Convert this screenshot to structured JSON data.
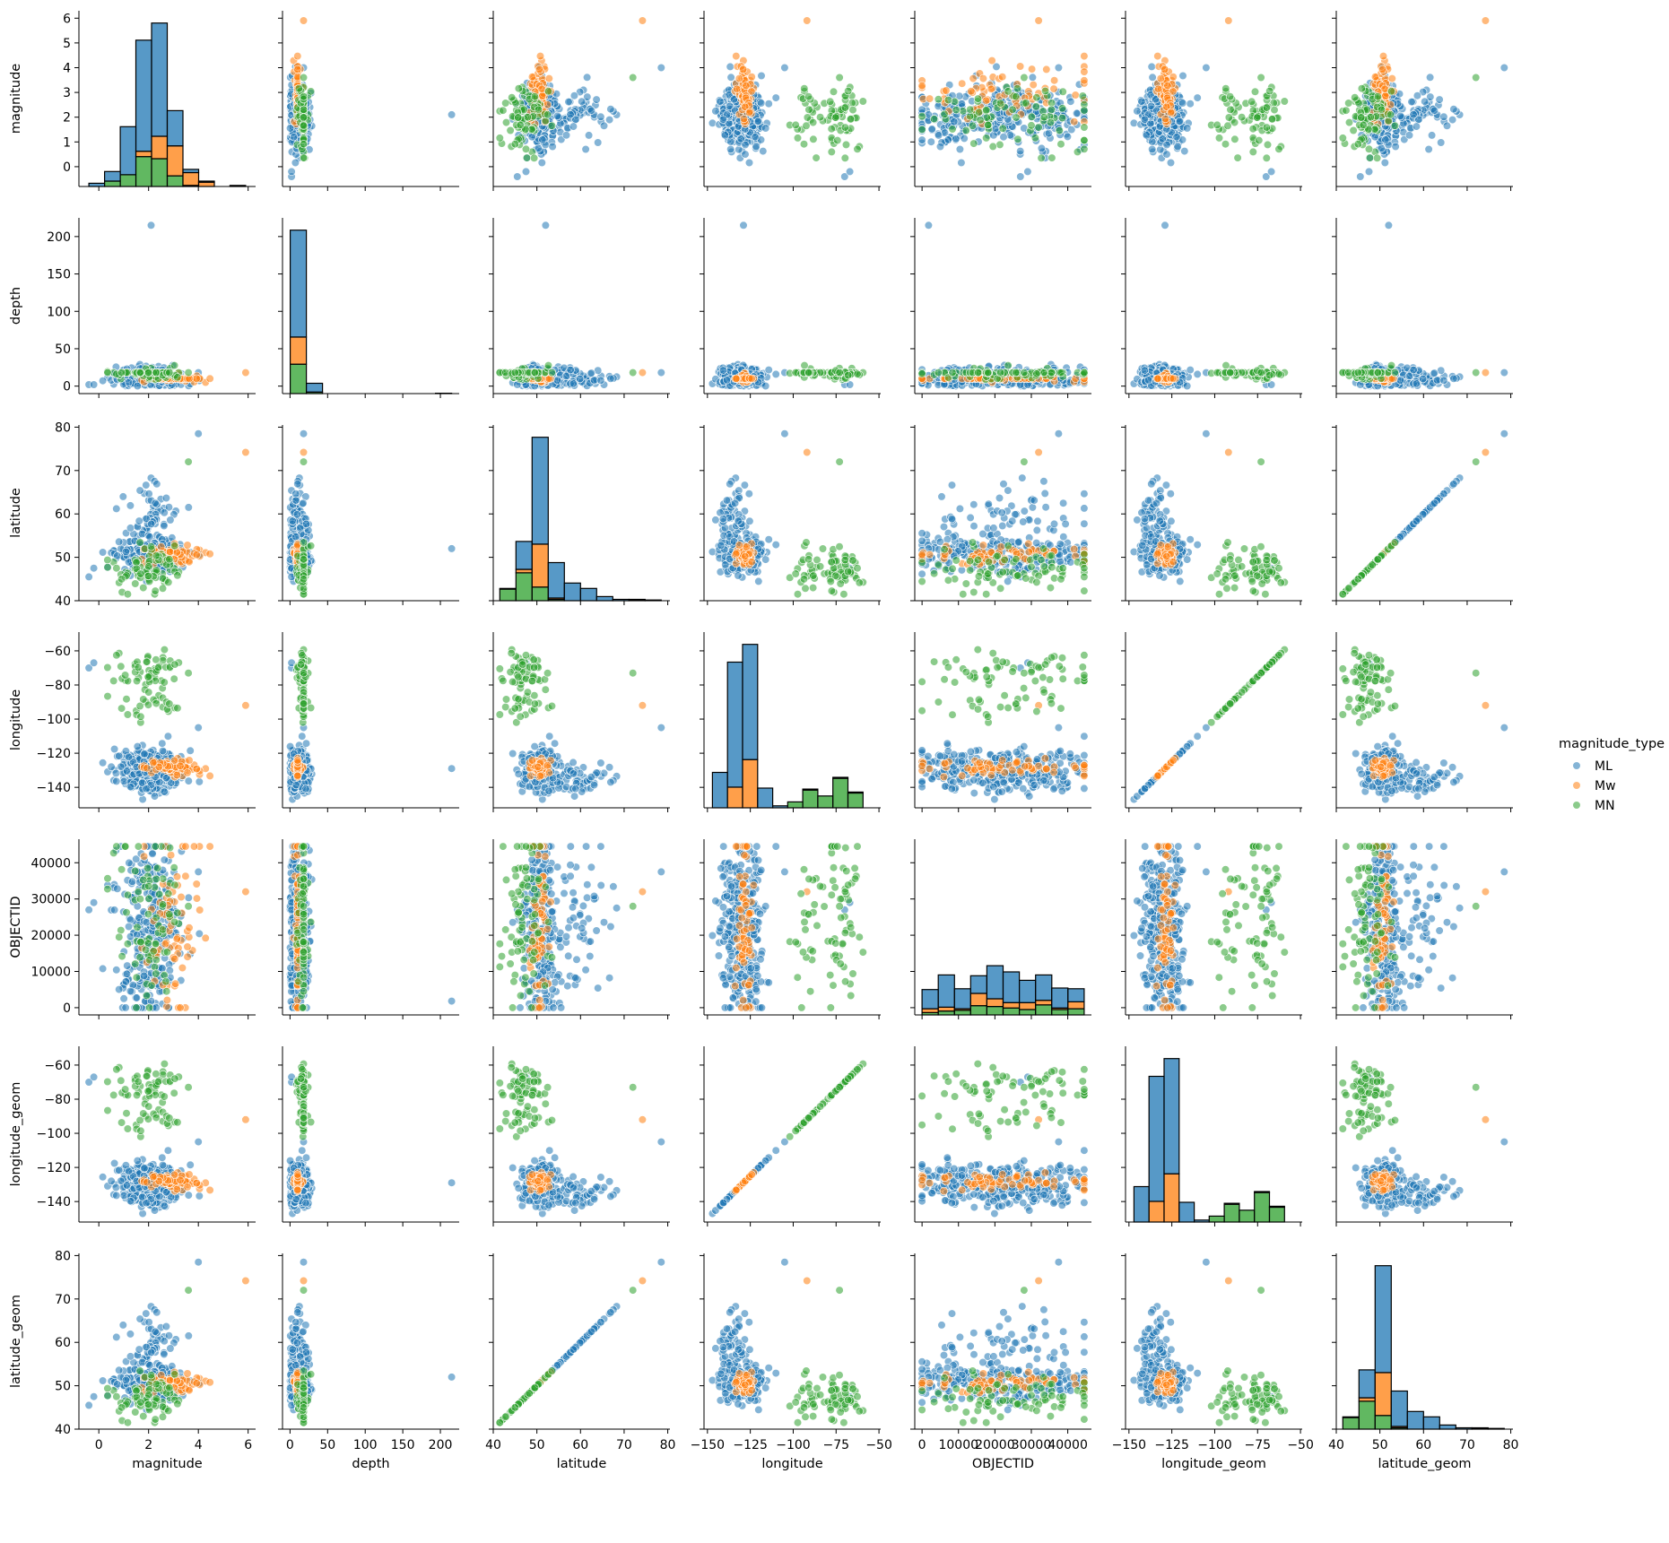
{
  "chart_data": {
    "type": "scatter",
    "variables": [
      "magnitude",
      "depth",
      "latitude",
      "longitude",
      "OBJECTID",
      "longitude_geom",
      "latitude_geom"
    ],
    "axis_labels": [
      "magnitude",
      "depth",
      "latitude",
      "longitude",
      "OBJECTID",
      "longitude_geom",
      "latitude_geom"
    ],
    "diagonal": "stacked histogram by magnitude_type",
    "off_diagonal": "scatter colored by magnitude_type",
    "legend": {
      "title": "magnitude_type",
      "position": "right",
      "entries": [
        {
          "label": "ML",
          "color": "#1f77b4"
        },
        {
          "label": "Mw",
          "color": "#ff7f0e"
        },
        {
          "label": "MN",
          "color": "#2ca02c"
        }
      ]
    },
    "ranges": {
      "magnitude": [
        -0.8,
        6.3
      ],
      "depth": [
        -10,
        225
      ],
      "latitude": [
        40,
        80.5
      ],
      "longitude": [
        -152,
        -49
      ],
      "OBJECTID": [
        -2000,
        46500
      ],
      "longitude_geom": [
        -152,
        -49
      ],
      "latitude_geom": [
        40,
        80.5
      ]
    },
    "ticks": {
      "magnitude": [
        0,
        1,
        2,
        3,
        4,
        5,
        6
      ],
      "magnitude_x": [
        0,
        2,
        4,
        6
      ],
      "depth": [
        0,
        50,
        100,
        150,
        200
      ],
      "latitude": [
        40,
        50,
        60,
        70,
        80
      ],
      "longitude": [
        -60,
        -80,
        -100,
        -120,
        -140
      ],
      "longitude_x": [
        -150,
        -125,
        -100,
        -75,
        -50
      ],
      "OBJECTID": [
        0,
        10000,
        20000,
        30000,
        40000
      ],
      "longitude_geom": [
        -60,
        -80,
        -100,
        -120,
        -140
      ],
      "longitude_geom_x": [
        -150,
        -125,
        -100,
        -75,
        -50
      ],
      "latitude_geom": [
        40,
        50,
        60,
        70,
        80
      ]
    },
    "clusters": {
      "ML": [
        {
          "n": 150,
          "mag": [
            2.0,
            0.7
          ],
          "depth": [
            9,
            9
          ],
          "lat": [
            50.5,
            2.2
          ],
          "lon": [
            -131,
            6
          ],
          "oid": [
            22000,
            13000
          ]
        },
        {
          "n": 70,
          "mag": [
            2.2,
            0.6
          ],
          "depth": [
            10,
            8
          ],
          "lat": [
            59,
            4
          ],
          "lon": [
            -136,
            5
          ],
          "oid": [
            24000,
            13000
          ]
        },
        {
          "n": 80,
          "mag": [
            2.0,
            0.7
          ],
          "depth": [
            8,
            7
          ],
          "lat": [
            51,
            2
          ],
          "lon": [
            -123,
            3
          ],
          "oid": [
            20000,
            13000
          ]
        }
      ],
      "Mw": [
        {
          "n": 70,
          "mag": [
            3.0,
            0.6
          ],
          "depth": [
            10,
            3
          ],
          "lat": [
            50.5,
            1.2
          ],
          "lon": [
            -129,
            2.5
          ],
          "oid": [
            22000,
            13000
          ]
        }
      ],
      "MN": [
        {
          "n": 55,
          "mag": [
            2.0,
            0.7
          ],
          "depth": [
            16,
            5
          ],
          "lat": [
            47.5,
            2.5
          ],
          "lon": [
            -72,
            5
          ],
          "oid": [
            24000,
            13000
          ]
        },
        {
          "n": 25,
          "mag": [
            2.0,
            0.7
          ],
          "depth": [
            16,
            5
          ],
          "lat": [
            47,
            2.5
          ],
          "lon": [
            -92,
            4
          ],
          "oid": [
            24000,
            13000
          ]
        }
      ]
    },
    "outliers": [
      {
        "type": "ML",
        "magnitude": 2.1,
        "depth": 215,
        "latitude": 52,
        "longitude": -129,
        "OBJECTID": 1800
      },
      {
        "type": "Mw",
        "magnitude": 5.9,
        "depth": 18,
        "latitude": 74.2,
        "longitude": -92,
        "OBJECTID": 32000
      },
      {
        "type": "ML",
        "magnitude": 4.0,
        "depth": 18,
        "latitude": 78.5,
        "longitude": -105,
        "OBJECTID": 37500
      },
      {
        "type": "ML",
        "magnitude": -0.4,
        "depth": 2,
        "latitude": 45.5,
        "longitude": -70,
        "OBJECTID": 27000
      },
      {
        "type": "ML",
        "magnitude": -0.2,
        "depth": 2,
        "latitude": 47.5,
        "longitude": -67,
        "OBJECTID": 29000
      },
      {
        "type": "MN",
        "magnitude": 3.6,
        "depth": 18,
        "latitude": 72,
        "longitude": -73,
        "OBJECTID": 28000
      }
    ]
  }
}
